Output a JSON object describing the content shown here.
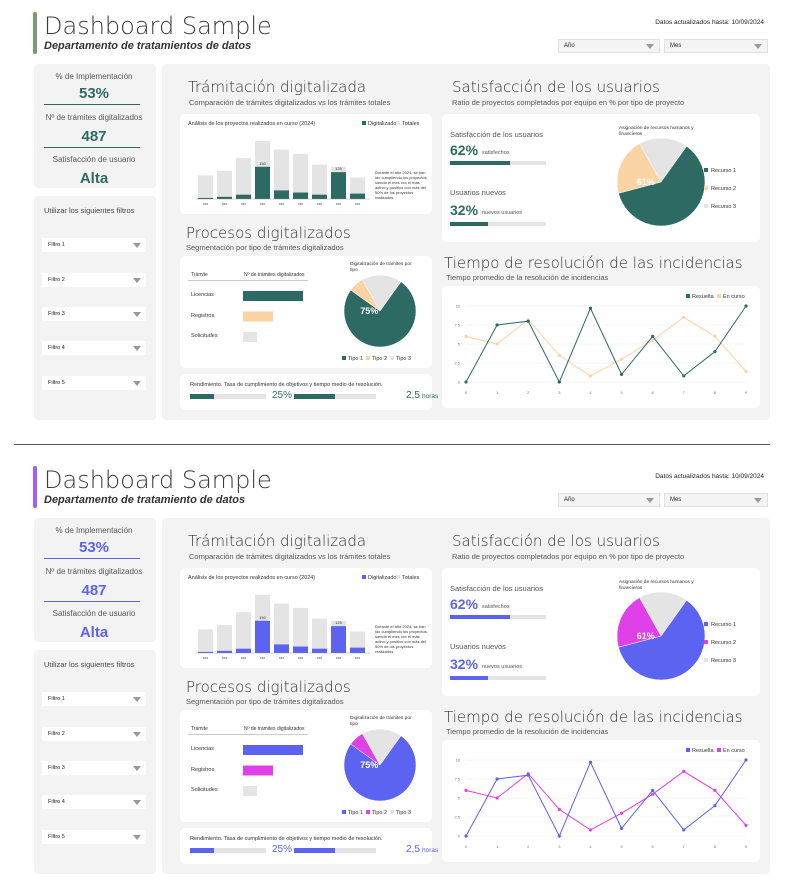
{
  "header": {
    "title": "Dashboard Sample",
    "updated": "Datos actualizados hasta: 10/09/2024",
    "select_year": "Año",
    "select_month": "Mes"
  },
  "kpis": [
    {
      "label": "% de Implementación",
      "value": "53%"
    },
    {
      "label": "Nº de trámites digitalizados",
      "value": "487"
    },
    {
      "label": "Satisfacción de usuario",
      "value": "Alta"
    }
  ],
  "filters": {
    "title": "Utilizar los siguientes filtros",
    "items": [
      "Filtro 1",
      "Filtro 2",
      "Filtro 3",
      "Filtro 4",
      "Filtro 5"
    ]
  },
  "tramitacion": {
    "title": "Trámitación digitalizada",
    "subtitle": "Comparación de trámites digitalizados vs los trámites totales",
    "chart_title": "Análisis de los proyectos realizados en curso (2024)",
    "legend_digital": "Digitalizados",
    "legend_total": "Totales",
    "note": "Durante el año 2024, se han ido cumpliendo los proyectos, siendo el mes xxx el más activo y positivo con más del 50% de los proyectos realizados.",
    "label_150": "150",
    "label_125": "125"
  },
  "procesos": {
    "title": "Procesos digitalizados",
    "subtitle": "Segmentación por tipo de trámites digitalizados",
    "col_tramite": "Trámite",
    "col_num": "Nº de trámites digitalizados",
    "rows": [
      "Licencias",
      "Registros",
      "Solicitudes"
    ],
    "pie_title": "Digitalización de trámites por tipo",
    "pie_pct": "75%",
    "legend": [
      "Tipo 1",
      "Tipo 2",
      "Tipo 3"
    ]
  },
  "rendimiento": {
    "label": "Rendimiento. Tasa de cumplimiento de objetivos y tiempo medio de resolución.",
    "pct": "25%",
    "hours": "2,5",
    "hours_unit": "horas"
  },
  "satisfaccion": {
    "title": "Satisfacción de los usuarios",
    "subtitle": "Ratio de proyectos completados por equipo en % por tipo de proyecto",
    "label1": "Satisfacción de los usuarios",
    "pct1": "62%",
    "unit1": "satisfechos",
    "label2": "Usuarios nuevos",
    "pct2": "32%",
    "unit2": "nuevos usuarios",
    "pie_title": "Asignación de recursos humanos y financieros",
    "pie_pct": "61%",
    "legend": [
      "Recurso 1",
      "Recurso 2",
      "Recurso 3"
    ]
  },
  "tiempo": {
    "title": "Tiempo de resolución de las incidencias",
    "subtitle": "Tiempo promedio de la resolución de incidencias",
    "legend": [
      "Resuelta",
      "En curso"
    ]
  },
  "variants": [
    {
      "department": "Departamento de tratamientos de datos",
      "colors": {
        "primary": "#2d6a64",
        "secondary": "#fbd3a4",
        "accent_bar": "#7a9a70",
        "gray": "#e4e4e4"
      }
    },
    {
      "department": "Departamento de tratamiento de datos",
      "colors": {
        "primary": "#5b63f0",
        "secondary": "#e040e8",
        "accent_bar": "#a45ef0",
        "gray": "#e4e4e4"
      }
    }
  ],
  "chart_data": [
    {
      "type": "bar",
      "title": "Análisis de los proyectos realizados en curso (2024)",
      "categories": [
        "xxx",
        "xxx",
        "xxx",
        "xxx",
        "xxx",
        "xxx",
        "xxx",
        "xxx",
        "xxx"
      ],
      "series": [
        {
          "name": "Digitalizados",
          "values": [
            5,
            10,
            20,
            150,
            40,
            30,
            20,
            125,
            25
          ]
        },
        {
          "name": "Totales",
          "values": [
            110,
            130,
            190,
            270,
            230,
            210,
            160,
            150,
            100
          ]
        }
      ]
    },
    {
      "type": "bar",
      "title": "Nº de trámites digitalizados",
      "categories": [
        "Licencias",
        "Registros",
        "Solicitudes"
      ],
      "values": [
        60,
        30,
        14
      ]
    },
    {
      "type": "pie",
      "title": "Digitalización de trámites por tipo",
      "categories": [
        "Tipo 1",
        "Tipo 2",
        "Tipo 3"
      ],
      "values": [
        75,
        7,
        18
      ]
    },
    {
      "type": "pie",
      "title": "Asignación de recursos humanos y financieros",
      "categories": [
        "Recurso 1",
        "Recurso 2",
        "Recurso 3"
      ],
      "values": [
        61,
        21,
        18
      ]
    },
    {
      "type": "line",
      "title": "Tiempo promedio de la resolución de incidencias",
      "x": [
        0,
        1,
        2,
        3,
        4,
        5,
        6,
        7,
        8,
        9
      ],
      "ylim": [
        0,
        10
      ],
      "yticks": [
        0,
        2.5,
        5,
        7.5,
        10
      ],
      "series": [
        {
          "name": "Resuelta",
          "values": [
            0,
            7.5,
            8,
            0,
            9.7,
            1,
            6,
            0.8,
            4,
            10
          ]
        },
        {
          "name": "En curso",
          "values": [
            6,
            5,
            8.2,
            3.5,
            0.8,
            3,
            5.5,
            8.5,
            6,
            1.4
          ]
        }
      ]
    }
  ]
}
